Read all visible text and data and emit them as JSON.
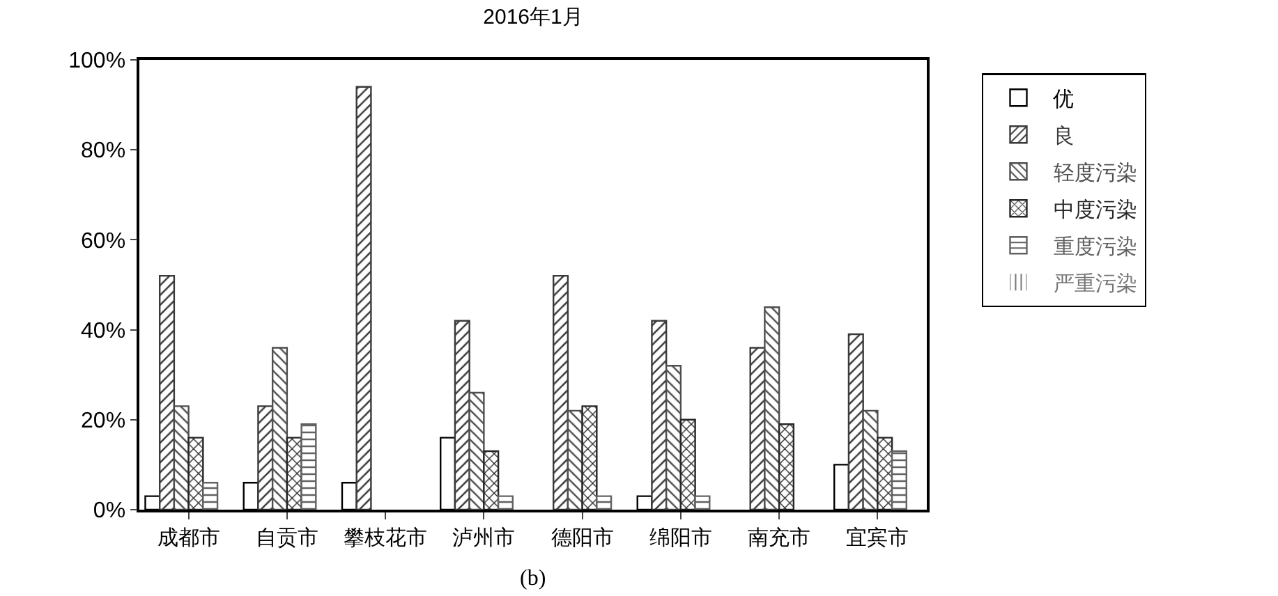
{
  "chart_data": {
    "type": "bar",
    "title": "2016年1月",
    "categories": [
      "成都市",
      "自贡市",
      "攀枝花市",
      "泸州市",
      "德阳市",
      "绵阳市",
      "南充市",
      "宜宾市"
    ],
    "series": [
      {
        "name": "优",
        "color": "#ffffff",
        "values": [
          3,
          6,
          6,
          16,
          0,
          3,
          0,
          10
        ]
      },
      {
        "name": "良",
        "color": "#3a3a3a",
        "values": [
          52,
          23,
          94,
          42,
          52,
          42,
          36,
          39
        ]
      },
      {
        "name": "轻度污染",
        "color": "#4e4e4e",
        "values": [
          23,
          36,
          0,
          26,
          22,
          32,
          45,
          22
        ]
      },
      {
        "name": "中度污染",
        "color": "#262626",
        "values": [
          16,
          16,
          0,
          13,
          23,
          20,
          19,
          16
        ]
      },
      {
        "name": "重度污染",
        "color": "#626262",
        "values": [
          6,
          19,
          0,
          3,
          3,
          3,
          0,
          13
        ]
      },
      {
        "name": "严重污染",
        "color": "#767676",
        "values": [
          0,
          0,
          0,
          0,
          0,
          0,
          0,
          0
        ]
      }
    ],
    "ylim": [
      0,
      100
    ],
    "yticks": [
      {
        "value": 0,
        "label": "0%"
      },
      {
        "value": 20,
        "label": "20%"
      },
      {
        "value": 40,
        "label": "40%"
      },
      {
        "value": 60,
        "label": "60%"
      },
      {
        "value": 80,
        "label": "80%"
      },
      {
        "value": 100,
        "label": "100%"
      }
    ],
    "grid": false,
    "legend": "top right",
    "annotations": [
      "(b)"
    ]
  }
}
